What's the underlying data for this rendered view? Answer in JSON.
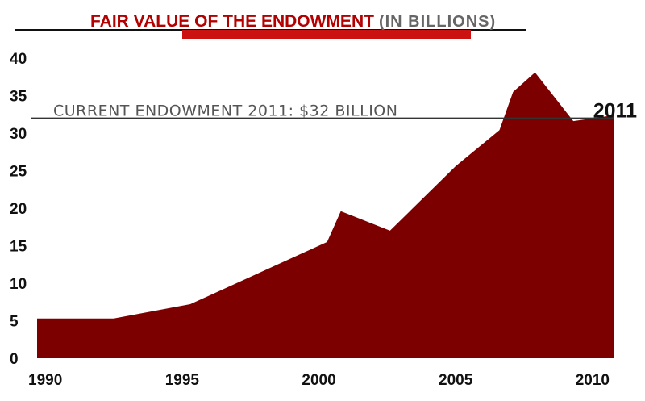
{
  "chart_data": {
    "type": "area",
    "title": "FAIR VALUE OF THE ENDOWMENT",
    "subtitle": "(IN BILLIONS)",
    "xlabel": "",
    "ylabel": "",
    "xlim": [
      1989.7,
      2010.8
    ],
    "ylim": [
      0,
      40
    ],
    "x_ticks": [
      "1990",
      "1995",
      "2000",
      "2005",
      "2010"
    ],
    "y_ticks": [
      "0",
      "5",
      "10",
      "15",
      "20",
      "25",
      "30",
      "35",
      "40"
    ],
    "grid": false,
    "series": [
      {
        "name": "Fair value of the endowment",
        "x": [
          1989.7,
          1992.5,
          1995.3,
          2000.3,
          2000.8,
          2002.6,
          2005.0,
          2006.6,
          2007.1,
          2007.9,
          2009.3,
          2010.8
        ],
        "values": [
          5.3,
          5.3,
          7.2,
          15.5,
          19.6,
          17.0,
          25.6,
          30.4,
          35.5,
          38.1,
          31.6,
          32.4
        ],
        "color": "#7d0000"
      }
    ],
    "reference_line": {
      "value": 32,
      "label": "CURRENT ENDOWMENT 2011: $32 BILLION"
    },
    "end_label": "2011"
  },
  "colors": {
    "area": "#7d0000",
    "title": "#b30000",
    "underline": "#cc1111"
  }
}
